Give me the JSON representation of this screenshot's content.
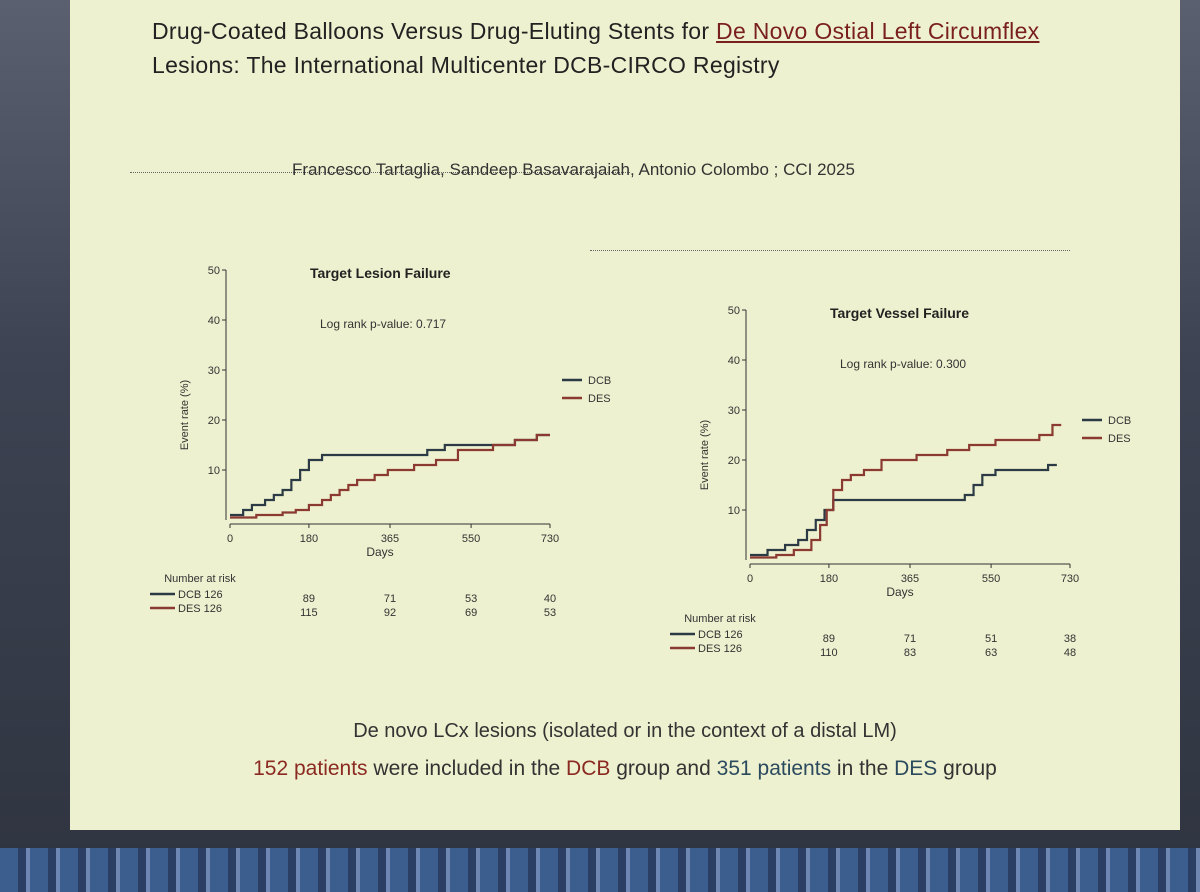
{
  "slide": {
    "title_part1": "Drug-Coated Balloons Versus Drug-Eluting Stents for ",
    "title_underlined": "De Novo Ostial Left Circumflex",
    "title_line2": "Lesions: The International Multicenter DCB-CIRCO Registry",
    "authors": "Francesco Tartaglia,  Sandeep Basavarajaiah, Antonio Colombo ; CCI 2025",
    "footnote_line1": "De novo LCx lesions (isolated or in the context of a distal LM)",
    "footnote_line2": {
      "n_dcb": "152 patients",
      "mid1": " were included in the ",
      "dcb": "DCB",
      "mid2": " group and ",
      "n_des": "351 patients",
      "mid3": " in the ",
      "des": "DES",
      "end": " group"
    }
  },
  "colors": {
    "dcb": "#2b3a44",
    "des": "#8a3a30"
  },
  "chart_data": [
    {
      "type": "line",
      "title": "Target Lesion Failure",
      "annotation": "Log rank p-value: 0.717",
      "ylabel": "Event rate (%)",
      "xlabel": "Days",
      "xlim": [
        0,
        730
      ],
      "ylim": [
        0,
        50
      ],
      "xticks": [
        "0",
        "180",
        "365",
        "550",
        "730"
      ],
      "yticks": [
        "10",
        "20",
        "30",
        "40",
        "50"
      ],
      "legend": [
        "DCB",
        "DES"
      ],
      "series": [
        {
          "name": "DCB",
          "x": [
            0,
            30,
            50,
            80,
            100,
            120,
            140,
            160,
            180,
            210,
            300,
            400,
            450,
            490,
            550,
            650,
            700,
            730
          ],
          "y": [
            1,
            2,
            3,
            4,
            5,
            6,
            8,
            10,
            12,
            13,
            13,
            13,
            14,
            15,
            15,
            16,
            17,
            17
          ]
        },
        {
          "name": "DES",
          "x": [
            0,
            60,
            120,
            150,
            180,
            210,
            230,
            250,
            270,
            290,
            330,
            360,
            420,
            470,
            520,
            600,
            650,
            700,
            730
          ],
          "y": [
            0.5,
            1,
            1.5,
            2,
            3,
            4,
            5,
            6,
            7,
            8,
            9,
            10,
            11,
            12,
            14,
            15,
            16,
            17,
            17
          ]
        }
      ],
      "risk_table": {
        "header": "Number at risk",
        "rows": [
          {
            "label": "DCB 126",
            "values": [
              "89",
              "71",
              "53",
              "40"
            ]
          },
          {
            "label": "DES 126",
            "values": [
              "115",
              "92",
              "69",
              "53"
            ]
          }
        ]
      }
    },
    {
      "type": "line",
      "title": "Target Vessel Failure",
      "annotation": "Log rank p-value: 0.300",
      "ylabel": "Event rate (%)",
      "xlabel": "Days",
      "xlim": [
        0,
        730
      ],
      "ylim": [
        0,
        50
      ],
      "xticks": [
        "0",
        "180",
        "365",
        "550",
        "730"
      ],
      "yticks": [
        "10",
        "20",
        "30",
        "40",
        "50"
      ],
      "legend": [
        "DCB",
        "DES"
      ],
      "series": [
        {
          "name": "DCB",
          "x": [
            0,
            40,
            80,
            110,
            130,
            150,
            170,
            190,
            230,
            300,
            400,
            470,
            490,
            510,
            530,
            560,
            620,
            680,
            700
          ],
          "y": [
            1,
            2,
            3,
            4,
            6,
            8,
            10,
            12,
            12,
            12,
            12,
            12,
            13,
            15,
            17,
            18,
            18,
            19,
            19
          ]
        },
        {
          "name": "DES",
          "x": [
            0,
            60,
            100,
            140,
            160,
            175,
            190,
            210,
            230,
            260,
            300,
            380,
            450,
            500,
            560,
            600,
            660,
            690,
            710
          ],
          "y": [
            0.5,
            1,
            2,
            4,
            7,
            10,
            14,
            16,
            17,
            18,
            20,
            21,
            22,
            23,
            24,
            24,
            25,
            27,
            27
          ]
        }
      ],
      "risk_table": {
        "header": "Number at risk",
        "rows": [
          {
            "label": "DCB 126",
            "values": [
              "89",
              "71",
              "51",
              "38"
            ]
          },
          {
            "label": "DES 126",
            "values": [
              "110",
              "83",
              "63",
              "48"
            ]
          }
        ]
      }
    }
  ]
}
